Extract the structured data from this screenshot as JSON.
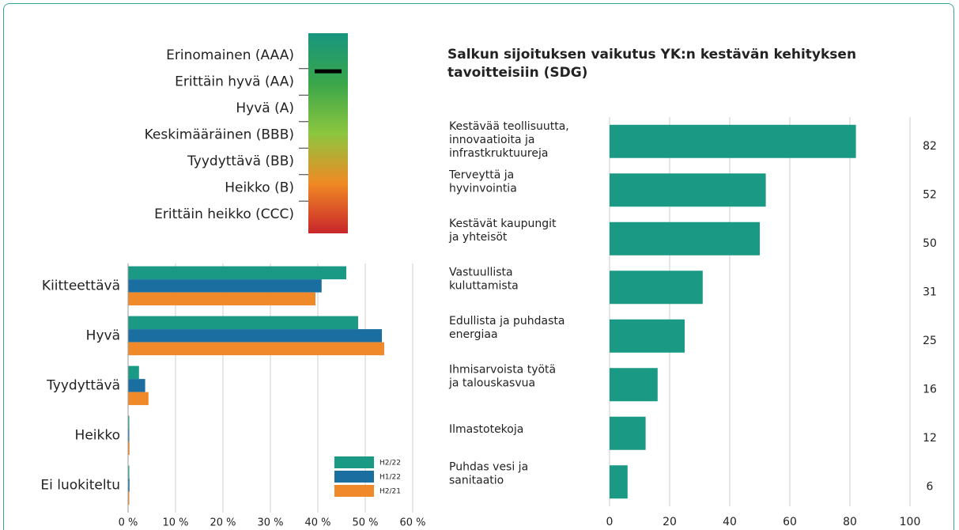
{
  "chart_data": [
    {
      "type": "rating_scale",
      "categories": [
        "Erinomainen (AAA)",
        "Erittäin hyvä (AA)",
        "Hyvä (A)",
        "Keskimääräinen (BBB)",
        "Tyydyttävä (BB)",
        "Heikko (B)",
        "Erittäin heikko (CCC)"
      ],
      "colors": [
        "#17967f",
        "#3aa64a",
        "#8cc63f",
        "#f08a24",
        "#c8262b"
      ],
      "marker": 0.6
    },
    {
      "type": "grouped_bar",
      "categories": [
        "Kiitteettävä",
        "Hyvä",
        "Tyydyttävä",
        "Heikko",
        "Ei luokiteltu"
      ],
      "series": [
        {
          "name": "H2/22",
          "color": "#1a9a84",
          "values": [
            46,
            48.5,
            2.3,
            0,
            0.2
          ]
        },
        {
          "name": "H1/22",
          "color": "#1a6fa0",
          "values": [
            40.8,
            53.5,
            3.6,
            0,
            0.3
          ]
        },
        {
          "name": "H2/21",
          "color": "#f0892a",
          "values": [
            39.5,
            54,
            4.3,
            0.3,
            0.2
          ]
        }
      ],
      "xlim": [
        0,
        60
      ],
      "xticks": [
        {
          "value": 0,
          "label": "0 %"
        },
        {
          "value": 10,
          "label": "10 %"
        },
        {
          "value": 20,
          "label": "20 %"
        },
        {
          "value": 30,
          "label": "30 %"
        },
        {
          "value": 40,
          "label": "40 %"
        },
        {
          "value": 50,
          "label": "50 %"
        },
        {
          "value": 60,
          "label": "60 %"
        }
      ],
      "grid": true,
      "legend": "lower right"
    },
    {
      "type": "bar",
      "title": "Salkun sijoituksen vaikutus YK:n kestävän kehityksen tavoitteisiin (SDG)",
      "categories": [
        [
          "Kestävää teollisuutta,",
          "innovaatioita ja",
          "infrastkruktuureja"
        ],
        [
          "Terveyttä ja",
          "hyvinvointia"
        ],
        [
          "Kestävät kaupungit",
          "ja yhteisöt"
        ],
        [
          "Vastuullista",
          "kuluttamista"
        ],
        [
          "Edullista ja puhdasta",
          "energiaa"
        ],
        [
          "Ihmisarvoista työtä",
          "ja talouskasvua"
        ],
        [
          "Ilmastotekoja"
        ],
        [
          "Puhdas vesi ja",
          "sanitaatio"
        ]
      ],
      "values": [
        82,
        52,
        50,
        31,
        25,
        16,
        12,
        6
      ],
      "color": "#1a9a84",
      "xlim": [
        0,
        100
      ],
      "xticks": [
        0,
        20,
        40,
        60,
        80,
        100
      ],
      "grid": true
    }
  ]
}
